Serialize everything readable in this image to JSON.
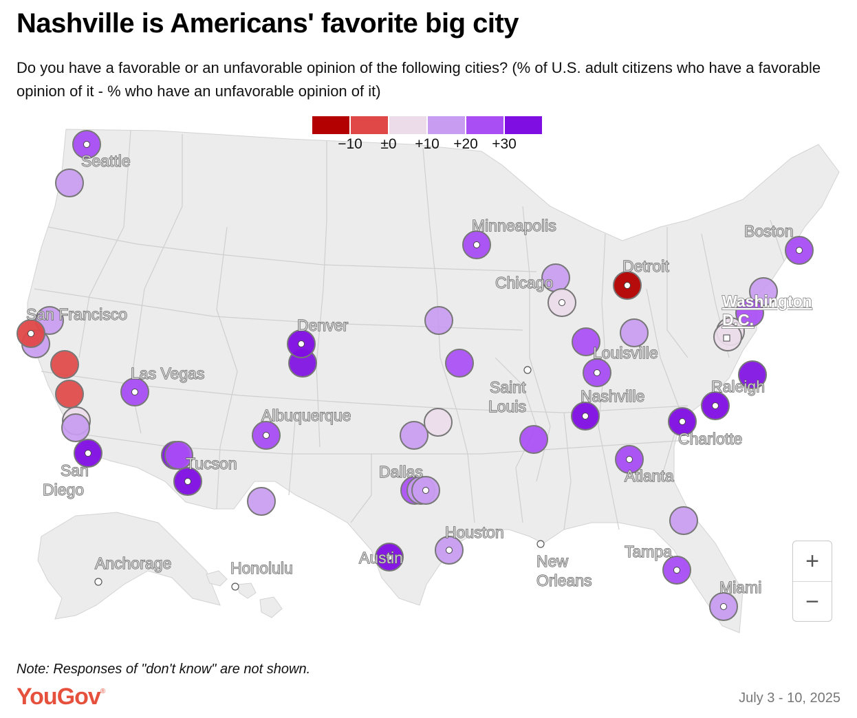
{
  "title": "Nashville is Americans' favorite big city",
  "subtitle": "Do you have a favorable or an unfavorable opinion of the following cities? (% of U.S. adult citizens who have a favorable opinion of it - % who have an unfavorable opinion of it)",
  "note": "Note: Responses of \"don't know\" are not shown.",
  "logo": "YouGov",
  "date": "July 3 - 10, 2025",
  "zoom": {
    "in_label": "+",
    "out_label": "−"
  },
  "legend": {
    "colors": [
      "#b30000",
      "#e04848",
      "#ecdcea",
      "#c89cf0",
      "#a94df5",
      "#7f0ee3"
    ],
    "labels": [
      "−10",
      "±0",
      "+10",
      "+20",
      "+30"
    ]
  },
  "cities": [
    {
      "name": "Seattle",
      "value": 25
    },
    {
      "name": "Minneapolis",
      "value": 27
    },
    {
      "name": "Boston",
      "value": 26
    },
    {
      "name": "Detroit",
      "value": -12
    },
    {
      "name": "Chicago",
      "value": 6
    },
    {
      "name": "Washington D.C.",
      "value": 5
    },
    {
      "name": "San Francisco",
      "value": -5
    },
    {
      "name": "Denver",
      "value": 33
    },
    {
      "name": "Louisville",
      "value": 24
    },
    {
      "name": "Las Vegas",
      "value": 25
    },
    {
      "name": "Saint Louis",
      "value": null
    },
    {
      "name": "Nashville",
      "value": 38
    },
    {
      "name": "Raleigh",
      "value": 37
    },
    {
      "name": "Albuquerque",
      "value": 24
    },
    {
      "name": "Charlotte",
      "value": 37
    },
    {
      "name": "San Diego",
      "value": 35
    },
    {
      "name": "Tucson",
      "value": 35
    },
    {
      "name": "Dallas",
      "value": 18
    },
    {
      "name": "Atlanta",
      "value": 25
    },
    {
      "name": "Houston",
      "value": 17
    },
    {
      "name": "Austin",
      "value": 38
    },
    {
      "name": "Tampa",
      "value": 26
    },
    {
      "name": "New Orleans",
      "value": null
    },
    {
      "name": "Anchorage",
      "value": null
    },
    {
      "name": "Honolulu",
      "value": null
    },
    {
      "name": "Miami",
      "value": 18
    }
  ]
}
